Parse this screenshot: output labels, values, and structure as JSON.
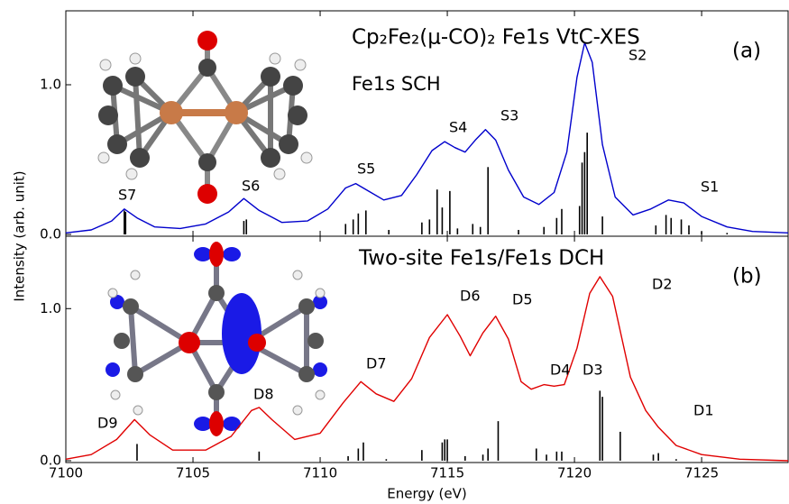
{
  "chart_data": [
    {
      "type": "line",
      "title": "Cp₂Fe₂(μ-CO)₂ Fe1s VtC-XES",
      "subtitle": "Fe1s SCH",
      "panel_label": "(a)",
      "ylabel": "Intensity (arb. unit)",
      "xlim": [
        7100,
        7128.4
      ],
      "xticks": [
        7100,
        7105,
        7110,
        7115,
        7120,
        7125
      ],
      "ylim": [
        -0.012,
        1.494
      ],
      "yticks": [
        {
          "value": 0,
          "label": "0.0"
        },
        {
          "value": 1,
          "label": "1.0"
        }
      ],
      "series": [
        {
          "color": "#0000cc",
          "x": [
            7100,
            7101,
            7101.8,
            7102.3,
            7102.8,
            7103.5,
            7104.5,
            7105.5,
            7106.4,
            7107.0,
            7107.6,
            7108.5,
            7109.5,
            7110.3,
            7111.0,
            7111.4,
            7111.9,
            7112.5,
            7113.2,
            7113.8,
            7114.4,
            7114.9,
            7115.3,
            7115.7,
            7116.1,
            7116.5,
            7116.9,
            7117.4,
            7118,
            7118.6,
            7119.2,
            7119.7,
            7120.1,
            7120.4,
            7120.7,
            7121.1,
            7121.6,
            7122.3,
            7123.0,
            7123.7,
            7124.3,
            7125,
            7126,
            7127,
            7128.4
          ],
          "values": [
            0.01,
            0.03,
            0.09,
            0.17,
            0.11,
            0.05,
            0.04,
            0.07,
            0.15,
            0.24,
            0.16,
            0.08,
            0.09,
            0.17,
            0.31,
            0.34,
            0.29,
            0.23,
            0.26,
            0.4,
            0.56,
            0.62,
            0.58,
            0.55,
            0.63,
            0.7,
            0.63,
            0.43,
            0.25,
            0.2,
            0.28,
            0.55,
            1.05,
            1.28,
            1.15,
            0.6,
            0.25,
            0.13,
            0.17,
            0.23,
            0.21,
            0.12,
            0.05,
            0.02,
            0.01
          ]
        }
      ],
      "sticks": {
        "color": "#000000",
        "x": [
          7102.3,
          7102.35,
          7107.0,
          7107.1,
          7111.0,
          7111.3,
          7111.5,
          7111.8,
          7112.7,
          7114.0,
          7114.3,
          7114.6,
          7114.8,
          7115.1,
          7115.4,
          7116.0,
          7116.3,
          7116.6,
          7117.8,
          7118.8,
          7119.3,
          7119.5,
          7120.2,
          7120.3,
          7120.4,
          7120.5,
          7121.1,
          7123.2,
          7123.6,
          7123.8,
          7124.2,
          7124.5,
          7125.0,
          7126.0
        ],
        "values": [
          0.16,
          0.15,
          0.09,
          0.1,
          0.07,
          0.1,
          0.14,
          0.16,
          0.03,
          0.08,
          0.1,
          0.3,
          0.18,
          0.29,
          0.04,
          0.07,
          0.05,
          0.45,
          0.03,
          0.05,
          0.11,
          0.17,
          0.19,
          0.48,
          0.55,
          0.68,
          0.12,
          0.06,
          0.13,
          0.11,
          0.1,
          0.06,
          0.02,
          0.01
        ]
      },
      "annotations": [
        "S7",
        "S6",
        "S5",
        "S4",
        "S3",
        "S2",
        "S1"
      ]
    },
    {
      "type": "line",
      "title": "Two-site Fe1s/Fe1s DCH",
      "panel_label": "(b)",
      "xlabel": "Energy (eV)",
      "xlim": [
        7100,
        7128.4
      ],
      "xticks": [
        7100,
        7105,
        7110,
        7115,
        7120,
        7125
      ],
      "ylim": [
        -0.012,
        1.476
      ],
      "yticks": [
        {
          "value": 0,
          "label": "0.0"
        },
        {
          "value": 1,
          "label": "1.0"
        }
      ],
      "series": [
        {
          "color": "#e00000",
          "x": [
            7100,
            7101,
            7102,
            7102.7,
            7103.3,
            7104.2,
            7105.5,
            7106.5,
            7107.3,
            7107.6,
            7108.1,
            7109,
            7110,
            7110.9,
            7111.6,
            7112.2,
            7112.9,
            7113.6,
            7114.3,
            7115.0,
            7115.5,
            7115.9,
            7116.4,
            7116.9,
            7117.4,
            7117.9,
            7118.3,
            7118.8,
            7119.2,
            7119.6,
            7120.1,
            7120.6,
            7121.0,
            7121.5,
            7122.2,
            7122.8,
            7123.3,
            7124,
            7125,
            7126.5,
            7128.4
          ],
          "values": [
            0.01,
            0.04,
            0.14,
            0.27,
            0.17,
            0.07,
            0.07,
            0.16,
            0.33,
            0.35,
            0.27,
            0.14,
            0.18,
            0.38,
            0.52,
            0.44,
            0.39,
            0.54,
            0.81,
            0.96,
            0.82,
            0.69,
            0.84,
            0.95,
            0.8,
            0.52,
            0.47,
            0.5,
            0.49,
            0.5,
            0.74,
            1.1,
            1.21,
            1.08,
            0.55,
            0.33,
            0.22,
            0.1,
            0.04,
            0.01,
            0.0
          ]
        }
      ],
      "sticks": {
        "color": "#000000",
        "x": [
          7102.8,
          7107.6,
          7111.1,
          7111.5,
          7111.7,
          7112.6,
          7114.0,
          7114.8,
          7114.9,
          7115.0,
          7115.7,
          7116.4,
          7116.6,
          7117.0,
          7118.5,
          7118.9,
          7119.3,
          7119.5,
          7121.0,
          7121.1,
          7121.8,
          7123.1,
          7123.3,
          7124.0
        ],
        "values": [
          0.11,
          0.06,
          0.03,
          0.08,
          0.12,
          0.01,
          0.07,
          0.12,
          0.14,
          0.14,
          0.03,
          0.04,
          0.08,
          0.26,
          0.08,
          0.04,
          0.06,
          0.06,
          0.46,
          0.42,
          0.19,
          0.04,
          0.05,
          0.01
        ]
      },
      "annotations": [
        "D9",
        "D8",
        "D7",
        "D6",
        "D5",
        "D4",
        "D3",
        "D2",
        "D1"
      ]
    }
  ]
}
